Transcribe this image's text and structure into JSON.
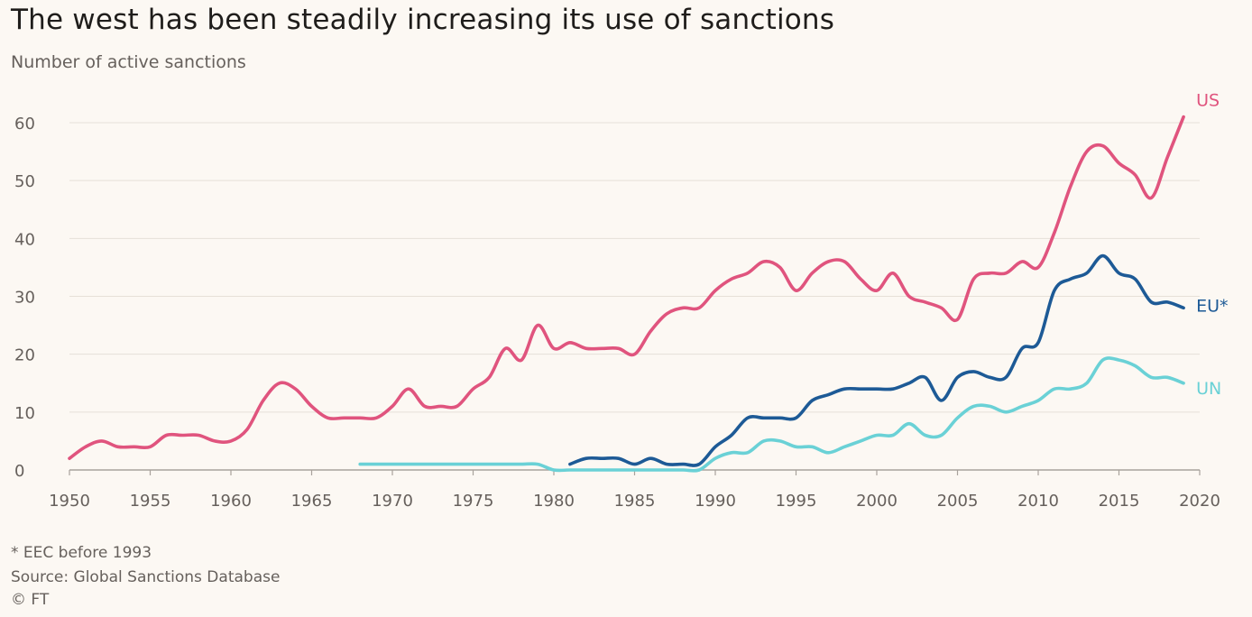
{
  "chart_data": {
    "type": "line",
    "title": "The west has been steadily increasing its use of sanctions",
    "subtitle": "Number of active sanctions",
    "xlabel": "",
    "ylabel": "",
    "xlim": [
      1950,
      2020
    ],
    "ylim": [
      0,
      60
    ],
    "x_ticks": [
      1950,
      1955,
      1960,
      1965,
      1970,
      1975,
      1980,
      1985,
      1990,
      1995,
      2000,
      2005,
      2010,
      2015,
      2020
    ],
    "y_ticks": [
      0,
      10,
      20,
      30,
      40,
      50,
      60
    ],
    "grid": "horizontal",
    "legend": "direct labels at line ends",
    "series": [
      {
        "name": "US",
        "color": "#e0547e",
        "x": [
          1950,
          1951,
          1952,
          1953,
          1954,
          1955,
          1956,
          1957,
          1958,
          1959,
          1960,
          1961,
          1962,
          1963,
          1964,
          1965,
          1966,
          1967,
          1968,
          1969,
          1970,
          1971,
          1972,
          1973,
          1974,
          1975,
          1976,
          1977,
          1978,
          1979,
          1980,
          1981,
          1982,
          1983,
          1984,
          1985,
          1986,
          1987,
          1988,
          1989,
          1990,
          1991,
          1992,
          1993,
          1994,
          1995,
          1996,
          1997,
          1998,
          1999,
          2000,
          2001,
          2002,
          2003,
          2004,
          2005,
          2006,
          2007,
          2008,
          2009,
          2010,
          2011,
          2012,
          2013,
          2014,
          2015,
          2016,
          2017,
          2018,
          2019
        ],
        "values": [
          2,
          4,
          5,
          4,
          4,
          4,
          6,
          6,
          6,
          5,
          5,
          7,
          12,
          15,
          14,
          11,
          9,
          9,
          9,
          9,
          11,
          14,
          11,
          11,
          11,
          14,
          16,
          21,
          19,
          25,
          21,
          22,
          21,
          21,
          21,
          20,
          24,
          27,
          28,
          28,
          31,
          33,
          34,
          36,
          35,
          31,
          34,
          36,
          36,
          33,
          31,
          34,
          30,
          29,
          28,
          26,
          33,
          34,
          34,
          36,
          35,
          41,
          49,
          55,
          56,
          53,
          51,
          47,
          54,
          61
        ]
      },
      {
        "name": "EU*",
        "color": "#1d5a96",
        "x": [
          1981,
          1982,
          1983,
          1984,
          1985,
          1986,
          1987,
          1988,
          1989,
          1990,
          1991,
          1992,
          1993,
          1994,
          1995,
          1996,
          1997,
          1998,
          1999,
          2000,
          2001,
          2002,
          2003,
          2004,
          2005,
          2006,
          2007,
          2008,
          2009,
          2010,
          2011,
          2012,
          2013,
          2014,
          2015,
          2016,
          2017,
          2018,
          2019
        ],
        "values": [
          1,
          2,
          2,
          2,
          1,
          2,
          1,
          1,
          1,
          4,
          6,
          9,
          9,
          9,
          9,
          12,
          13,
          14,
          14,
          14,
          14,
          15,
          16,
          12,
          16,
          17,
          16,
          16,
          21,
          22,
          31,
          33,
          34,
          37,
          34,
          33,
          29,
          29,
          28
        ]
      },
      {
        "name": "UN",
        "color": "#6ad1d6",
        "x": [
          1968,
          1969,
          1970,
          1971,
          1972,
          1973,
          1974,
          1975,
          1976,
          1977,
          1978,
          1979,
          1980,
          1981,
          1982,
          1983,
          1984,
          1985,
          1986,
          1987,
          1988,
          1989,
          1990,
          1991,
          1992,
          1993,
          1994,
          1995,
          1996,
          1997,
          1998,
          1999,
          2000,
          2001,
          2002,
          2003,
          2004,
          2005,
          2006,
          2007,
          2008,
          2009,
          2010,
          2011,
          2012,
          2013,
          2014,
          2015,
          2016,
          2017,
          2018,
          2019
        ],
        "values": [
          1,
          1,
          1,
          1,
          1,
          1,
          1,
          1,
          1,
          1,
          1,
          1,
          0,
          0,
          0,
          0,
          0,
          0,
          0,
          0,
          0,
          0,
          2,
          3,
          3,
          5,
          5,
          4,
          4,
          3,
          4,
          5,
          6,
          6,
          8,
          6,
          6,
          9,
          11,
          11,
          10,
          11,
          12,
          14,
          14,
          15,
          19,
          19,
          18,
          16,
          16,
          15
        ]
      }
    ]
  },
  "footnotes": {
    "note": "* EEC before 1993",
    "source": "Source: Global Sanctions Database",
    "credit": "© FT"
  }
}
